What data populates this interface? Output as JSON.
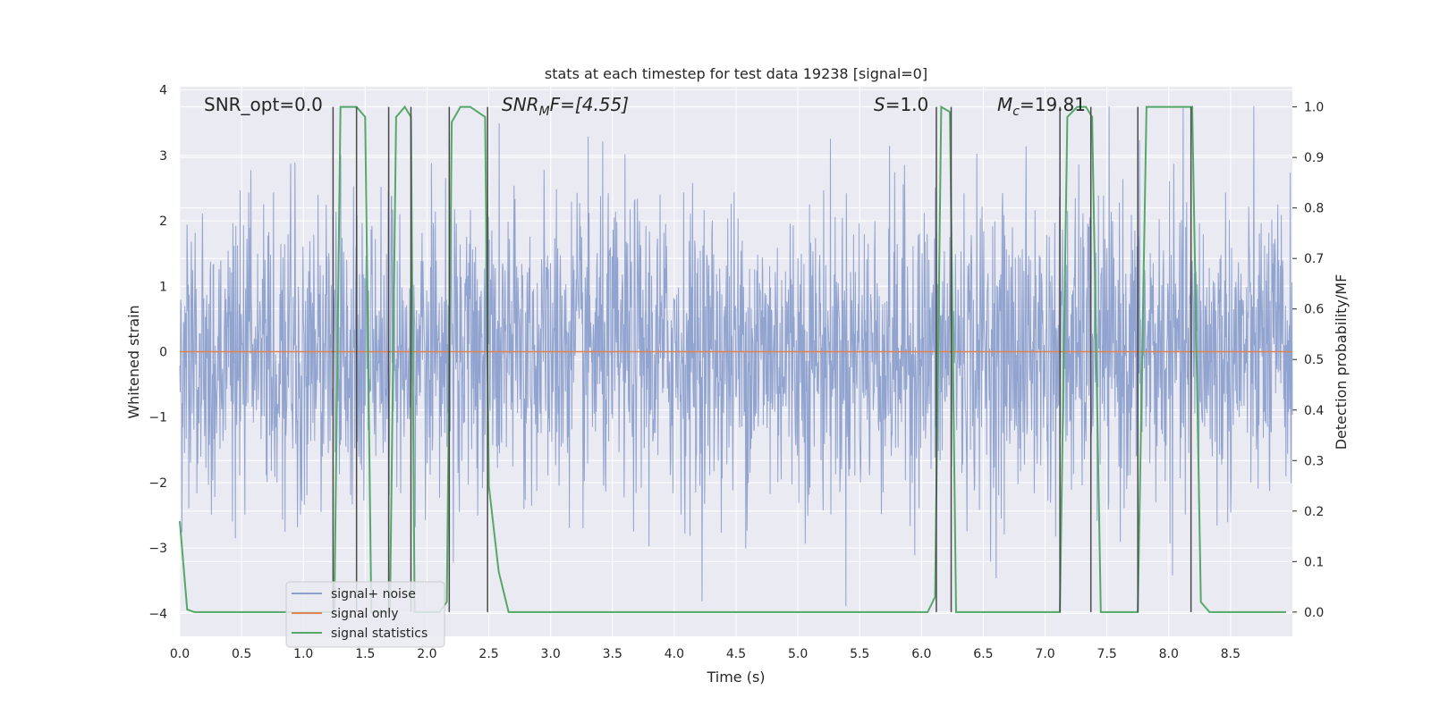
{
  "chart_data": {
    "type": "line",
    "title": "stats at each timestep for test data 19238 [signal=0]",
    "xlabel": "Time (s)",
    "ylabel": "Whitened strain",
    "y2label": "Detection probability/MF",
    "xlim": [
      0.0,
      9.0
    ],
    "ylim": [
      -4.35,
      4.05
    ],
    "y2lim": [
      -0.048,
      1.04
    ],
    "xticks": [
      "0.0",
      "0.5",
      "1.0",
      "1.5",
      "2.0",
      "2.5",
      "3.0",
      "3.5",
      "4.0",
      "4.5",
      "5.0",
      "5.5",
      "6.0",
      "6.5",
      "7.0",
      "7.5",
      "8.0",
      "8.5"
    ],
    "yticks": [
      "4",
      "3",
      "2",
      "1",
      "0",
      "−1",
      "−2",
      "−3",
      "−4"
    ],
    "y2ticks": [
      "1.0",
      "0.9",
      "0.8",
      "0.7",
      "0.6",
      "0.5",
      "0.4",
      "0.3",
      "0.2",
      "0.1",
      "0.0"
    ],
    "grid": true,
    "legend_position": "lower left",
    "annotations": {
      "snr_opt": "SNR_opt=0.0",
      "snr_mf_base": "SNR",
      "snr_mf_sub": "M",
      "snr_mf_tail": "F=[4.55]",
      "s_base": "S",
      "s_tail": "=1.0",
      "mc_base": "M",
      "mc_sub": "c",
      "mc_tail": "=19.81"
    },
    "series": [
      {
        "name": "signal+ noise",
        "color": "#8c9fcc",
        "note_shape": "whitened noise band, approximately -2.5 to 2.5 with spikes up to about 3.8 and down to about -4.0"
      },
      {
        "name": "signal only",
        "color": "#dd8452",
        "x": [
          0.0,
          9.0
        ],
        "y": [
          0.0,
          0.0
        ]
      },
      {
        "name": "signal statistics",
        "color": "#55a868",
        "axis": "right",
        "x": [
          0.0,
          0.06,
          0.12,
          0.5,
          1.0,
          1.25,
          1.3,
          1.43,
          1.5,
          1.55,
          1.7,
          1.75,
          1.82,
          1.87,
          1.9,
          2.0,
          2.1,
          2.16,
          2.2,
          2.27,
          2.35,
          2.47,
          2.5,
          2.58,
          2.66,
          3.0,
          4.0,
          5.0,
          5.5,
          6.05,
          6.11,
          6.16,
          6.23,
          6.28,
          6.4,
          7.0,
          7.12,
          7.18,
          7.26,
          7.33,
          7.38,
          7.45,
          7.53,
          7.75,
          7.82,
          8.0,
          8.19,
          8.26,
          8.33,
          8.5,
          8.95
        ],
        "y": [
          0.18,
          0.005,
          0.0,
          0.0,
          0.0,
          0.0,
          1.0,
          1.0,
          0.98,
          0.0,
          0.0,
          0.98,
          1.0,
          0.98,
          0.0,
          0.0,
          0.0,
          0.02,
          0.97,
          1.0,
          1.0,
          0.98,
          0.25,
          0.08,
          0.0,
          0.0,
          0.0,
          0.0,
          0.0,
          0.0,
          0.03,
          1.0,
          0.99,
          0.0,
          0.0,
          0.0,
          0.0,
          0.98,
          1.0,
          1.0,
          0.98,
          0.0,
          0.0,
          0.0,
          1.0,
          1.0,
          1.0,
          0.02,
          0.0,
          0.0,
          0.0
        ]
      }
    ],
    "vertical_lines_x": [
      1.24,
      1.43,
      1.69,
      1.87,
      2.18,
      2.49,
      6.12,
      6.24,
      7.12,
      7.37,
      7.75,
      8.18
    ]
  }
}
